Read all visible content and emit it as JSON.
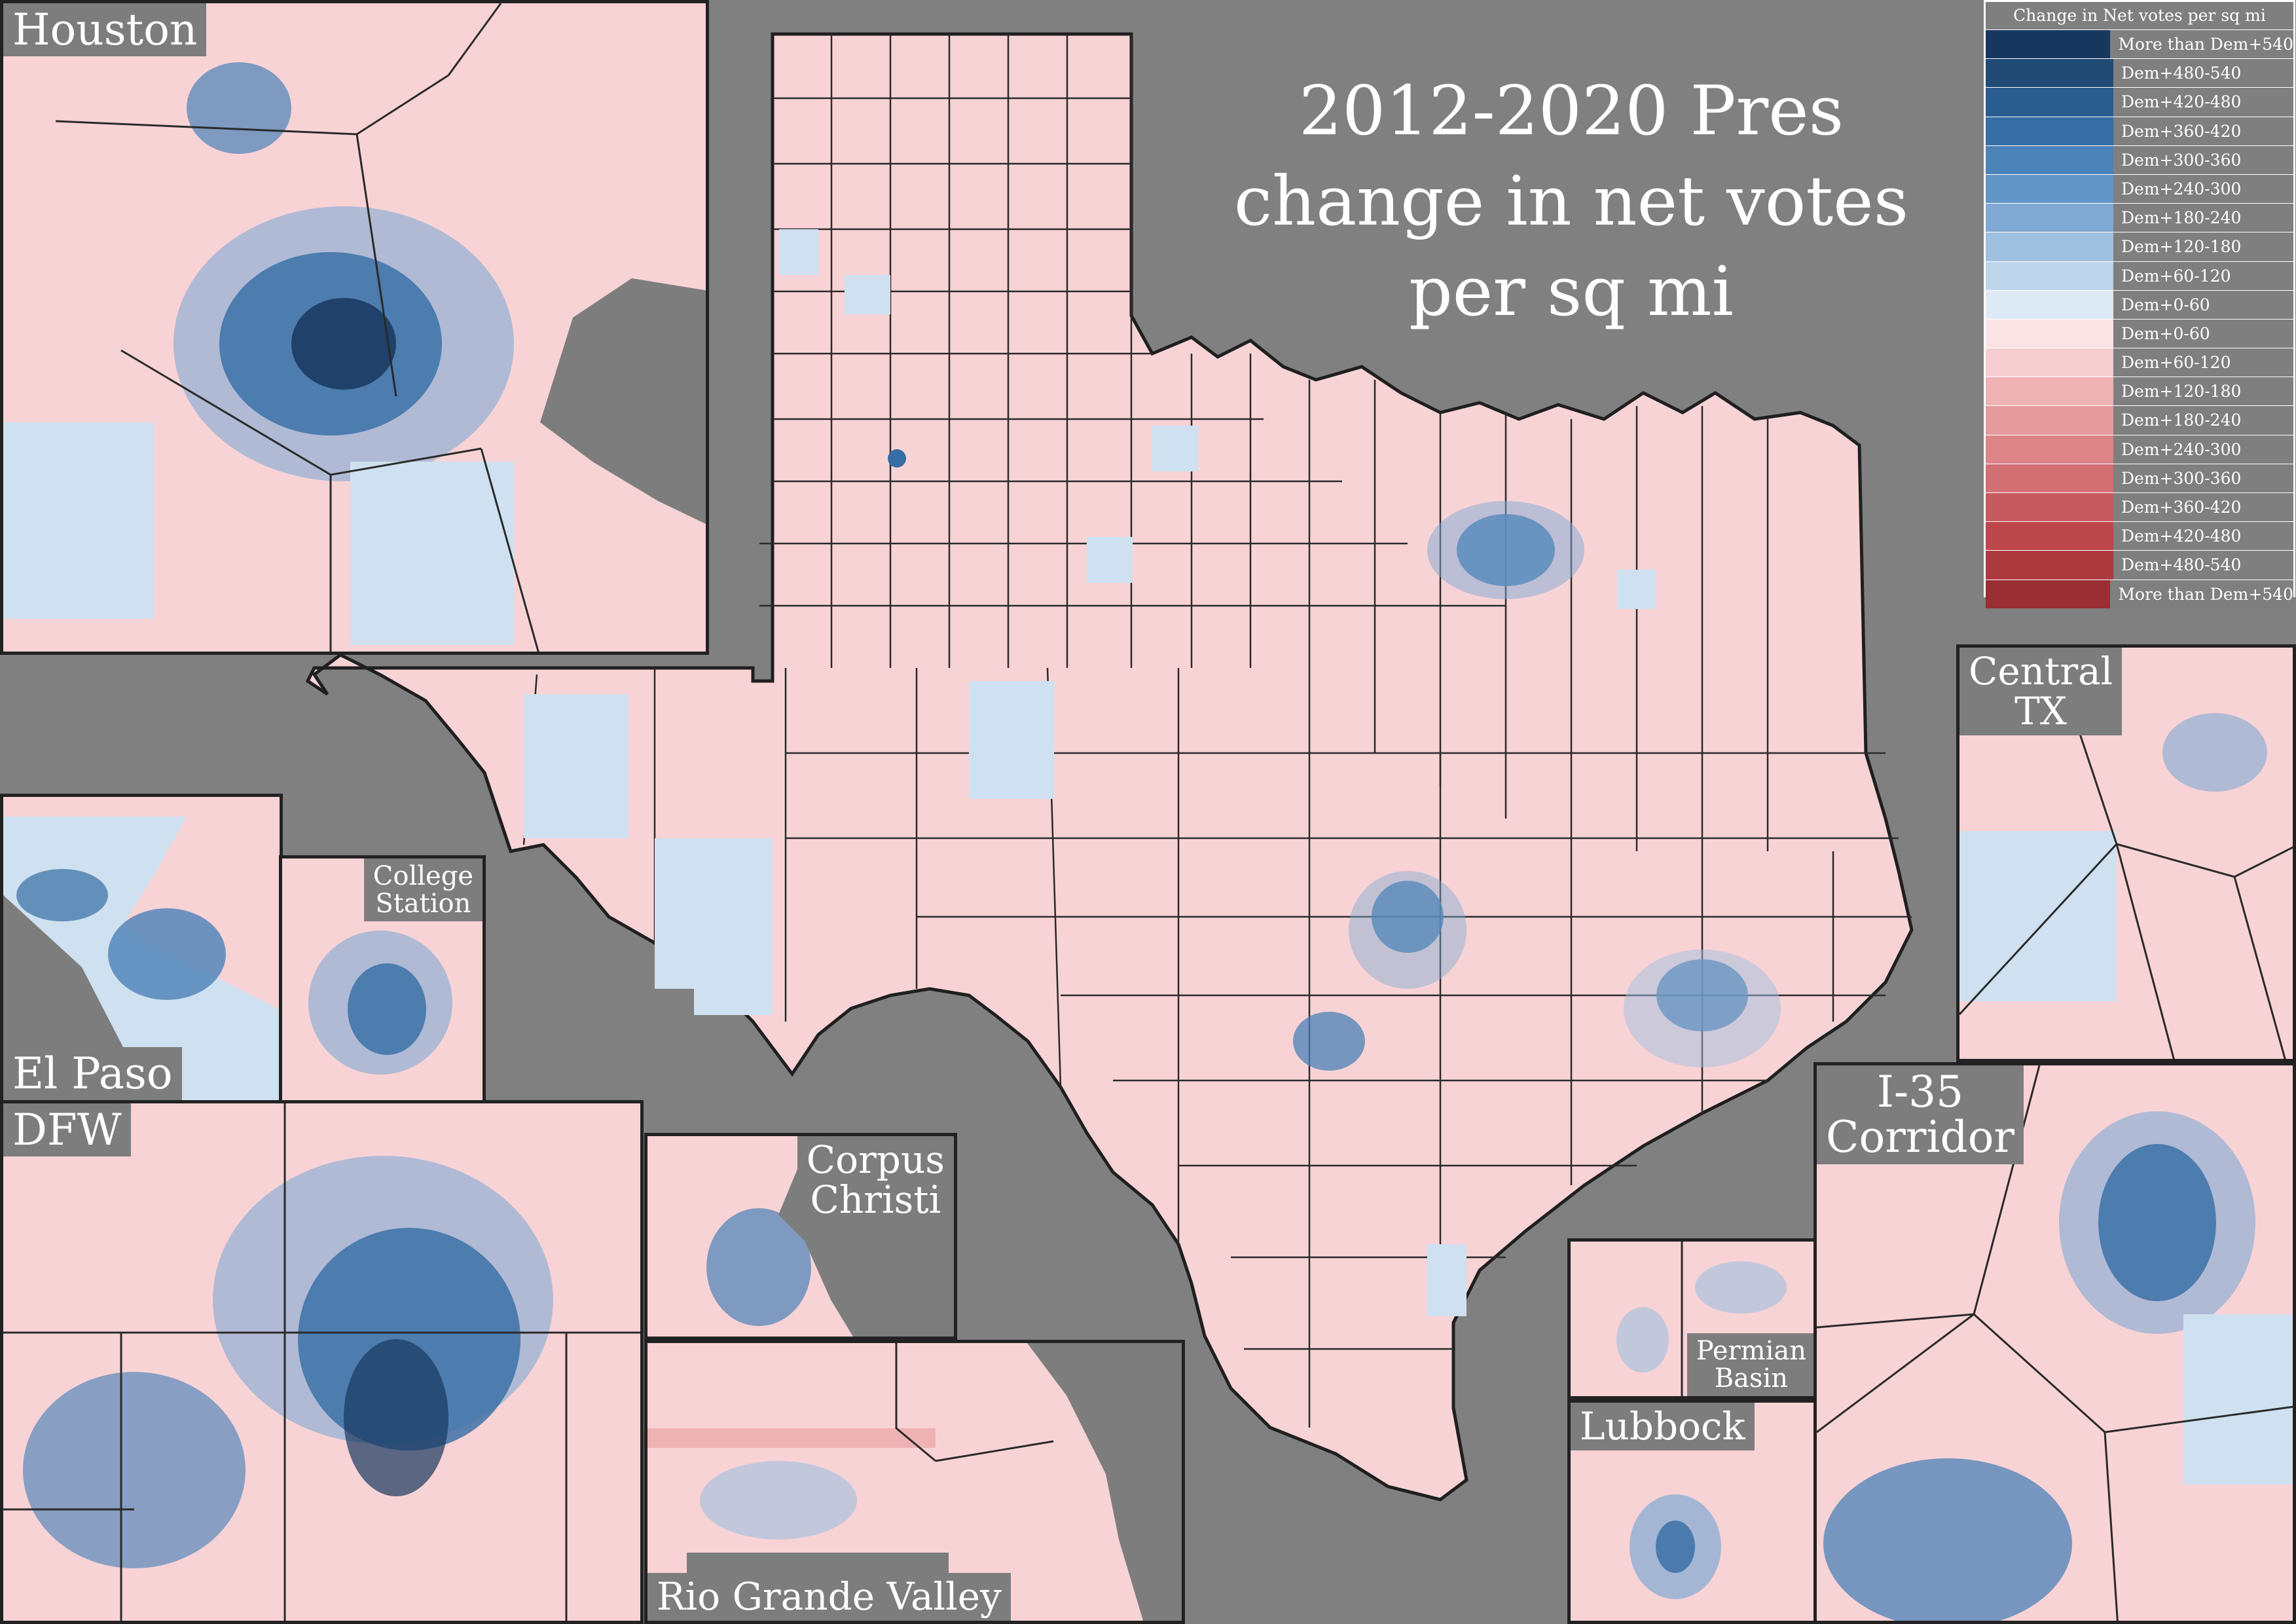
{
  "title": {
    "line1": "2012-2020 Pres",
    "line2": "change in net votes",
    "line3": "per sq mi"
  },
  "colors": {
    "background": "#808080",
    "base_pink": "#f8d3d6",
    "base_blue": "#cfe1f0",
    "border": "#222222"
  },
  "legend": {
    "title": "Change in Net votes per sq mi",
    "items": [
      {
        "label": "More than Dem+540",
        "color": "#17375e"
      },
      {
        "label": "Dem+480-540",
        "color": "#214a75"
      },
      {
        "label": "Dem+420-480",
        "color": "#2b5c8f"
      },
      {
        "label": "Dem+360-420",
        "color": "#356da4"
      },
      {
        "label": "Dem+300-360",
        "color": "#4b82b8"
      },
      {
        "label": "Dem+240-300",
        "color": "#6396c6"
      },
      {
        "label": "Dem+180-240",
        "color": "#80aad3"
      },
      {
        "label": "Dem+120-180",
        "color": "#a0c0e0"
      },
      {
        "label": "Dem+60-120",
        "color": "#bdd4ea"
      },
      {
        "label": "Dem+0-60",
        "color": "#dde9f4"
      },
      {
        "label": "Dem+0-60",
        "color": "#fbe2e4"
      },
      {
        "label": "Dem+60-120",
        "color": "#f6cdd0"
      },
      {
        "label": "Dem+120-180",
        "color": "#efb2b5"
      },
      {
        "label": "Dem+180-240",
        "color": "#e59a9e"
      },
      {
        "label": "Dem+240-300",
        "color": "#dc8488"
      },
      {
        "label": "Dem+300-360",
        "color": "#d26f73"
      },
      {
        "label": "Dem+360-420",
        "color": "#c75a5e"
      },
      {
        "label": "Dem+420-480",
        "color": "#bb474c"
      },
      {
        "label": "Dem+480-540",
        "color": "#ac3a3f"
      },
      {
        "label": "More than Dem+540",
        "color": "#992e33"
      }
    ]
  },
  "insets": {
    "houston": {
      "label": "Houston"
    },
    "el_paso": {
      "label": "El Paso"
    },
    "college_station": {
      "label_l1": "College",
      "label_l2": "Station"
    },
    "dfw": {
      "label": "DFW"
    },
    "corpus_christi": {
      "label_l1": "Corpus",
      "label_l2": "Christi"
    },
    "rio_grande_valley": {
      "label": "Rio Grande Valley"
    },
    "permian_basin": {
      "label_l1": "Permian",
      "label_l2": "Basin"
    },
    "lubbock": {
      "label": "Lubbock"
    },
    "central_tx": {
      "label_l1": "Central",
      "label_l2": "TX"
    },
    "i35_corridor": {
      "label_l1": "I-35",
      "label_l2": "Corridor"
    }
  }
}
